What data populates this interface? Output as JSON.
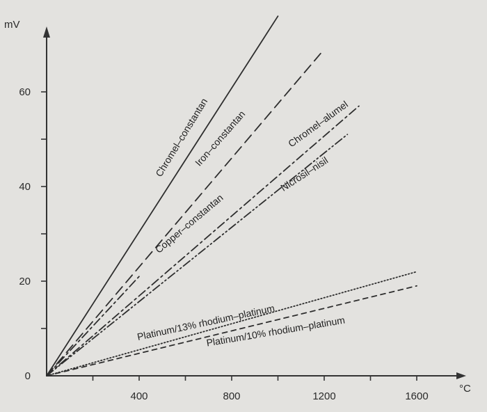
{
  "chart_data": {
    "type": "line",
    "title": "",
    "xlabel": "",
    "ylabel": "",
    "x_unit": "°C",
    "y_unit": "mV",
    "xlim": [
      0,
      1800
    ],
    "ylim": [
      0,
      70
    ],
    "x_ticks": [
      0,
      200,
      400,
      600,
      800,
      1000,
      1200,
      1400,
      1600
    ],
    "x_tick_labels": [
      {
        "value": 400,
        "label": "400"
      },
      {
        "value": 800,
        "label": "800"
      },
      {
        "value": 1200,
        "label": "1200"
      },
      {
        "value": 1600,
        "label": "1600"
      }
    ],
    "y_ticks": [
      0,
      10,
      20,
      30,
      40,
      50,
      60
    ],
    "y_tick_labels": [
      {
        "value": 0,
        "label": "0"
      },
      {
        "value": 20,
        "label": "20"
      },
      {
        "value": 40,
        "label": "40"
      },
      {
        "value": 60,
        "label": "60"
      }
    ],
    "grid": false,
    "legend": "none (series labelled inline)",
    "series": [
      {
        "name": "Chromel–constantan",
        "style": "solid",
        "color": "#2e2e2e",
        "x": [
          0,
          1000
        ],
        "y": [
          0,
          76
        ]
      },
      {
        "name": "Iron–constantan",
        "style": "dashed",
        "color": "#2e2e2e",
        "x": [
          0,
          1200
        ],
        "y": [
          0,
          69
        ]
      },
      {
        "name": "Copper–constantan",
        "style": "dashdot",
        "color": "#2e2e2e",
        "x": [
          0,
          400
        ],
        "y": [
          0,
          21
        ]
      },
      {
        "name": "Chromel–alumel",
        "style": "dashdot",
        "color": "#2e2e2e",
        "x": [
          0,
          1350
        ],
        "y": [
          0,
          57
        ]
      },
      {
        "name": "Nicrosil–nisil",
        "style": "dashdotdot",
        "color": "#2e2e2e",
        "x": [
          0,
          1300
        ],
        "y": [
          0,
          51
        ]
      },
      {
        "name": "Platinum/13% rhodium–platinum",
        "style": "dotted",
        "color": "#2e2e2e",
        "x": [
          0,
          1600
        ],
        "y": [
          0,
          22
        ]
      },
      {
        "name": "Platinum/10% rhodium–platinum",
        "style": "shortdash",
        "color": "#2e2e2e",
        "x": [
          0,
          1600
        ],
        "y": [
          0,
          19
        ]
      }
    ]
  }
}
